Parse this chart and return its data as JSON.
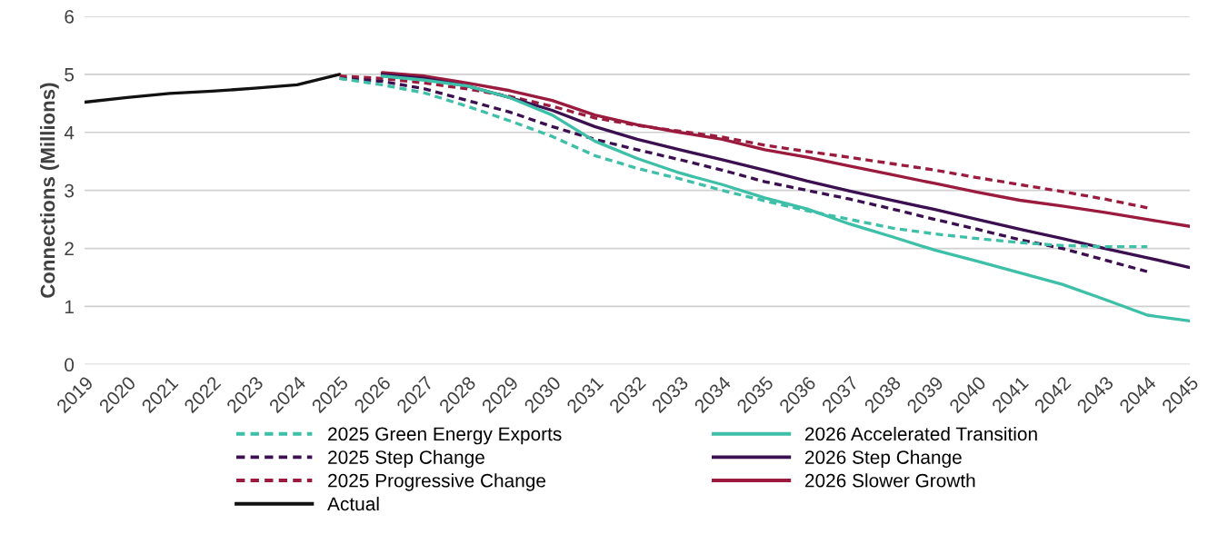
{
  "chart_data": {
    "type": "line",
    "ylabel": "Connections (Millions)",
    "categories": [
      "2019",
      "2020",
      "2021",
      "2022",
      "2023",
      "2024",
      "2025",
      "2026",
      "2027",
      "2028",
      "2029",
      "2030",
      "2031",
      "2032",
      "2033",
      "2034",
      "2035",
      "2036",
      "2037",
      "2038",
      "2039",
      "2040",
      "2041",
      "2042",
      "2043",
      "2044",
      "2045"
    ],
    "ylim": [
      0,
      6
    ],
    "yticks": [
      0,
      1,
      2,
      3,
      4,
      5,
      6
    ],
    "grid": "y",
    "legend": "bottom",
    "marker": "none",
    "series": [
      {
        "name": "2025 Green Energy Exports",
        "color": "#3dbfa8",
        "line_style": "dashed",
        "values": [
          null,
          null,
          null,
          null,
          null,
          null,
          4.93,
          4.82,
          4.68,
          4.45,
          4.2,
          3.93,
          3.6,
          3.38,
          3.2,
          3.0,
          2.82,
          2.65,
          2.5,
          2.35,
          2.25,
          2.17,
          2.1,
          2.05,
          2.03,
          2.03,
          null
        ]
      },
      {
        "name": "2026 Accelerated Transition",
        "color": "#3dbfa8",
        "line_style": "solid",
        "values": [
          null,
          null,
          null,
          null,
          null,
          null,
          null,
          4.97,
          4.9,
          4.8,
          4.6,
          4.3,
          3.85,
          3.55,
          3.3,
          3.1,
          2.87,
          2.68,
          2.42,
          2.2,
          1.97,
          1.78,
          1.58,
          1.38,
          1.12,
          0.85,
          0.75
        ]
      },
      {
        "name": "2025 Step Change",
        "color": "#3b0f50",
        "line_style": "dashed",
        "values": [
          null,
          null,
          null,
          null,
          null,
          null,
          4.93,
          4.88,
          4.75,
          4.55,
          4.35,
          4.1,
          3.88,
          3.7,
          3.53,
          3.35,
          3.15,
          3.0,
          2.85,
          2.68,
          2.5,
          2.33,
          2.15,
          2.0,
          1.8,
          1.6,
          null
        ]
      },
      {
        "name": "2026 Step Change",
        "color": "#3b0f50",
        "line_style": "solid",
        "values": [
          null,
          null,
          null,
          null,
          null,
          null,
          null,
          5.0,
          4.93,
          4.8,
          4.6,
          4.38,
          4.1,
          3.88,
          3.7,
          3.53,
          3.35,
          3.16,
          2.99,
          2.83,
          2.67,
          2.5,
          2.33,
          2.17,
          2.0,
          1.84,
          1.67
        ]
      },
      {
        "name": "2025 Progressive Change",
        "color": "#9b1b3e",
        "line_style": "dashed",
        "values": [
          null,
          null,
          null,
          null,
          null,
          null,
          4.97,
          4.93,
          4.85,
          4.75,
          4.62,
          4.45,
          4.25,
          4.12,
          4.02,
          3.92,
          3.78,
          3.67,
          3.57,
          3.46,
          3.35,
          3.22,
          3.1,
          2.98,
          2.85,
          2.7,
          null
        ]
      },
      {
        "name": "2026 Slower Growth",
        "color": "#9b1b3e",
        "line_style": "solid",
        "values": [
          null,
          null,
          null,
          null,
          null,
          null,
          null,
          5.03,
          4.97,
          4.85,
          4.72,
          4.55,
          4.3,
          4.13,
          4.0,
          3.88,
          3.7,
          3.57,
          3.42,
          3.27,
          3.12,
          2.97,
          2.83,
          2.73,
          2.62,
          2.5,
          2.38
        ]
      },
      {
        "name": "Actual",
        "color": "#111111",
        "line_style": "solid",
        "values": [
          4.52,
          4.6,
          4.67,
          4.71,
          4.76,
          4.82,
          5.0,
          null,
          null,
          null,
          null,
          null,
          null,
          null,
          null,
          null,
          null,
          null,
          null,
          null,
          null,
          null,
          null,
          null,
          null,
          null,
          null
        ]
      }
    ]
  }
}
